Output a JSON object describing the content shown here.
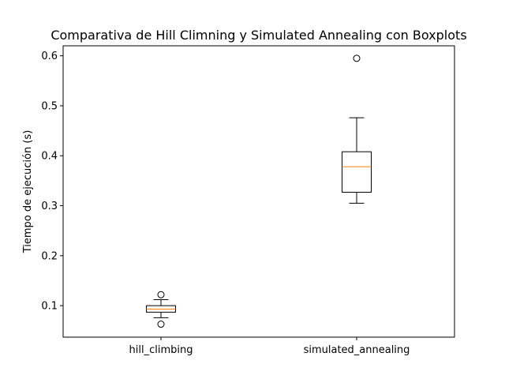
{
  "chart_data": {
    "type": "boxplot",
    "title": "Comparativa de Hill Climning y Simulated Annealing con Boxplots",
    "xlabel": "",
    "ylabel": "Tiempo de ejecución (s)",
    "ylim": [
      0.037,
      0.62
    ],
    "yticks": [
      0.1,
      0.2,
      0.3,
      0.4,
      0.5,
      0.6
    ],
    "categories": [
      "hill_climbing",
      "simulated_annealing"
    ],
    "boxes": [
      {
        "name": "hill_climbing",
        "whisker_low": 0.076,
        "q1": 0.087,
        "median": 0.093,
        "q3": 0.1,
        "whisker_high": 0.112,
        "outliers": [
          0.122,
          0.063
        ]
      },
      {
        "name": "simulated_annealing",
        "whisker_low": 0.305,
        "q1": 0.327,
        "median": 0.378,
        "q3": 0.408,
        "whisker_high": 0.476,
        "outliers": [
          0.595
        ]
      }
    ],
    "grid": false,
    "legend": "none",
    "colors": {
      "box": "#000000",
      "median": "#ff7f0e"
    }
  }
}
